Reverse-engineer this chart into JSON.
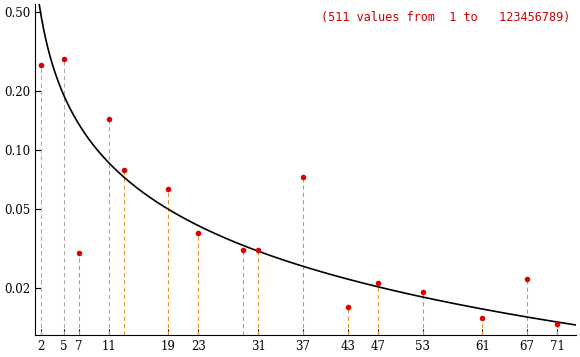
{
  "primes": [
    2,
    5,
    7,
    11,
    13,
    19,
    23,
    29,
    31,
    37,
    43,
    47,
    53,
    61,
    67,
    71
  ],
  "values": [
    0.27,
    0.29,
    0.03,
    0.143,
    0.079,
    0.063,
    0.038,
    0.031,
    0.031,
    0.073,
    0.016,
    0.021,
    0.019,
    0.014,
    0.022,
    0.013
  ],
  "grey_primes": [
    2,
    5
  ],
  "annotation": "(511 values from  1 to   123456789)",
  "annotation_color": "#cc0000",
  "dot_color": "#dd0000",
  "vline_orange_color": "#e89020",
  "vline_grey_color": "#aaaaaa",
  "curve_color": "#000000",
  "xtick_positions": [
    2,
    5,
    7,
    11,
    19,
    23,
    31,
    37,
    43,
    47,
    53,
    61,
    67,
    71
  ],
  "xtick_labels": [
    "2",
    "5",
    "7",
    "11",
    "19",
    "23",
    "31",
    "37",
    "43",
    "47",
    "53",
    "61",
    "67",
    "71"
  ],
  "ylim_min": 0.0115,
  "ylim_max": 0.55,
  "xlim_min": 1.2,
  "xlim_max": 73.5,
  "yticks": [
    0.02,
    0.05,
    0.1,
    0.2,
    0.5
  ],
  "ytick_labels": [
    "0.02",
    "0.05",
    "0.10",
    "0.20",
    "0.50"
  ],
  "background_color": "#ffffff",
  "curve_A": 0.95,
  "curve_alpha": 1.0,
  "curve_start": 1.5,
  "curve_end": 73.5
}
